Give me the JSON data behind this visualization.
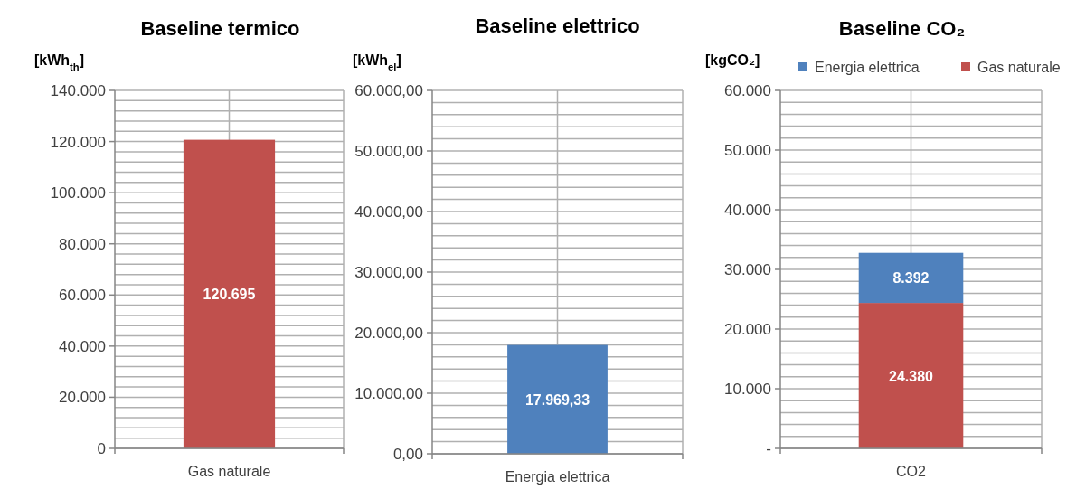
{
  "chart_data": [
    {
      "type": "bar",
      "title": "Baseline termico",
      "ylabel": "[kWh$_{th}$]",
      "categories": [
        "Gas naturale"
      ],
      "values": [
        120695
      ],
      "color": "#c0504d",
      "value_labels": [
        "120.695"
      ],
      "grid": true,
      "ylim": [
        0,
        140000
      ],
      "yticks": [
        0,
        {
          "value": 4000,
          "label": null
        },
        {
          "value": 8000,
          "label": null
        },
        {
          "value": 12000,
          "label": null
        },
        {
          "value": 16000,
          "label": null
        },
        {
          "value": 20000,
          "label": "20.000"
        },
        {
          "value": 24000,
          "label": null
        },
        {
          "value": 28000,
          "label": null
        },
        {
          "value": 32000,
          "label": null
        },
        {
          "value": 36000,
          "label": null
        },
        {
          "value": 40000,
          "label": "40.000"
        },
        {
          "value": 44000,
          "label": null
        },
        {
          "value": 48000,
          "label": null
        },
        {
          "value": 52000,
          "label": null
        },
        {
          "value": 56000,
          "label": null
        },
        {
          "value": 60000,
          "label": "60.000"
        },
        {
          "value": 64000,
          "label": null
        },
        {
          "value": 68000,
          "label": null
        },
        {
          "value": 72000,
          "label": null
        },
        {
          "value": 76000,
          "label": null
        },
        {
          "value": 80000,
          "label": "80.000"
        },
        {
          "value": 84000,
          "label": null
        },
        {
          "value": 88000,
          "label": null
        },
        {
          "value": 92000,
          "label": null
        },
        {
          "value": 96000,
          "label": null
        },
        {
          "value": 100000,
          "label": "100.000"
        },
        {
          "value": 104000,
          "label": null
        },
        {
          "value": 108000,
          "label": null
        },
        {
          "value": 112000,
          "label": null
        },
        {
          "value": 116000,
          "label": null
        },
        {
          "value": 120000,
          "label": "120.000"
        },
        {
          "value": 124000,
          "label": null
        },
        {
          "value": 128000,
          "label": null
        },
        {
          "value": 132000,
          "label": null
        },
        {
          "value": 136000,
          "label": null
        },
        {
          "value": 140000,
          "label": "140.000"
        }
      ]
    },
    {
      "type": "bar",
      "title": "Baseline elettrico",
      "ylabel": "[kWh$_{el}$]",
      "categories": [
        "Energia elettrica"
      ],
      "values": [
        17969.33
      ],
      "color": "#4f81bd",
      "value_labels": [
        "17.969,33"
      ],
      "grid": true,
      "ylim": [
        0,
        60000
      ],
      "yticks": [
        {
          "value": 0,
          "label": "0,00"
        },
        {
          "value": 2000,
          "label": null
        },
        {
          "value": 4000,
          "label": null
        },
        {
          "value": 6000,
          "label": null
        },
        {
          "value": 8000,
          "label": null
        },
        {
          "value": 10000,
          "label": "10.000,00"
        },
        {
          "value": 12000,
          "label": null
        },
        {
          "value": 14000,
          "label": null
        },
        {
          "value": 16000,
          "label": null
        },
        {
          "value": 18000,
          "label": null
        },
        {
          "value": 20000,
          "label": "20.000,00"
        },
        {
          "value": 22000,
          "label": null
        },
        {
          "value": 24000,
          "label": null
        },
        {
          "value": 26000,
          "label": null
        },
        {
          "value": 28000,
          "label": null
        },
        {
          "value": 30000,
          "label": "30.000,00"
        },
        {
          "value": 32000,
          "label": null
        },
        {
          "value": 34000,
          "label": null
        },
        {
          "value": 36000,
          "label": null
        },
        {
          "value": 38000,
          "label": null
        },
        {
          "value": 40000,
          "label": "40.000,00"
        },
        {
          "value": 42000,
          "label": null
        },
        {
          "value": 44000,
          "label": null
        },
        {
          "value": 46000,
          "label": null
        },
        {
          "value": 48000,
          "label": null
        },
        {
          "value": 50000,
          "label": "50.000,00"
        },
        {
          "value": 52000,
          "label": null
        },
        {
          "value": 54000,
          "label": null
        },
        {
          "value": 56000,
          "label": null
        },
        {
          "value": 58000,
          "label": null
        },
        {
          "value": 60000,
          "label": "60.000,00"
        }
      ]
    },
    {
      "type": "bar",
      "title": "Baseline CO₂",
      "ylabel": "[kgCO₂]",
      "categories": [
        "CO2"
      ],
      "stacked": true,
      "legend": "top",
      "grid": true,
      "ylim": [
        0,
        60000
      ],
      "series": [
        {
          "name": "Gas naturale",
          "color": "#c0504d",
          "values": [
            24380
          ],
          "value_labels": [
            "24.380"
          ]
        },
        {
          "name": "Energia elettrica",
          "color": "#4f81bd",
          "values": [
            8392
          ],
          "value_labels": [
            "8.392"
          ]
        }
      ],
      "yticks": [
        {
          "value": 0,
          "label": "-"
        },
        {
          "value": 2000,
          "label": null
        },
        {
          "value": 4000,
          "label": null
        },
        {
          "value": 6000,
          "label": null
        },
        {
          "value": 8000,
          "label": null
        },
        {
          "value": 10000,
          "label": "10.000"
        },
        {
          "value": 12000,
          "label": null
        },
        {
          "value": 14000,
          "label": null
        },
        {
          "value": 16000,
          "label": null
        },
        {
          "value": 18000,
          "label": null
        },
        {
          "value": 20000,
          "label": "20.000"
        },
        {
          "value": 22000,
          "label": null
        },
        {
          "value": 24000,
          "label": null
        },
        {
          "value": 26000,
          "label": null
        },
        {
          "value": 28000,
          "label": null
        },
        {
          "value": 30000,
          "label": "30.000"
        },
        {
          "value": 32000,
          "label": null
        },
        {
          "value": 34000,
          "label": null
        },
        {
          "value": 36000,
          "label": null
        },
        {
          "value": 38000,
          "label": null
        },
        {
          "value": 40000,
          "label": "40.000"
        },
        {
          "value": 42000,
          "label": null
        },
        {
          "value": 44000,
          "label": null
        },
        {
          "value": 46000,
          "label": null
        },
        {
          "value": 48000,
          "label": null
        },
        {
          "value": 50000,
          "label": "50.000"
        },
        {
          "value": 52000,
          "label": null
        },
        {
          "value": 54000,
          "label": null
        },
        {
          "value": 56000,
          "label": null
        },
        {
          "value": 58000,
          "label": null
        },
        {
          "value": 60000,
          "label": "60.000"
        }
      ]
    }
  ]
}
